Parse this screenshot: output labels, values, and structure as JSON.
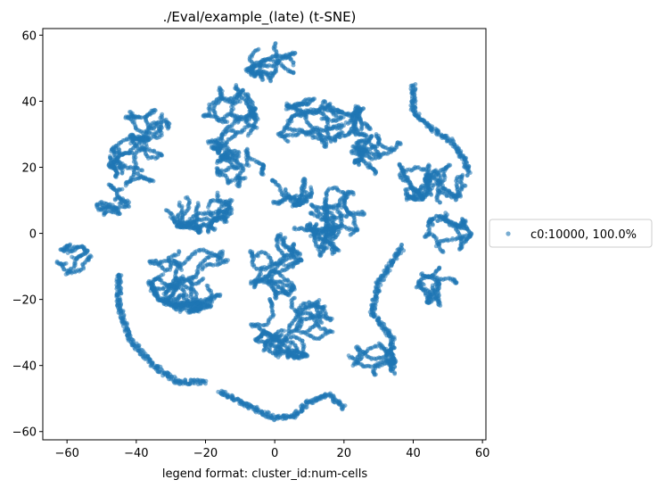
{
  "chart_data": {
    "type": "scatter",
    "title": "./Eval/example_(late) (t-SNE)",
    "xlabel": "legend format:  cluster_id:num-cells",
    "ylabel": "",
    "xlim": [
      -67,
      61
    ],
    "ylim": [
      -62.5,
      62
    ],
    "x_ticks": [
      -60,
      -40,
      -20,
      0,
      20,
      40,
      60
    ],
    "y_ticks": [
      -60,
      -40,
      -20,
      0,
      20,
      40,
      60
    ],
    "x_tick_labels": [
      "−60",
      "−40",
      "−20",
      "0",
      "20",
      "40",
      "60"
    ],
    "y_tick_labels": [
      "−60",
      "−40",
      "−20",
      "0",
      "20",
      "40",
      "60"
    ],
    "grid": false,
    "legend_position": "outside-right",
    "color": "#1f77b4",
    "series": [
      {
        "name": "c0:10000, 100.0%",
        "color": "#1f77b4",
        "point_count": 10000,
        "clusters": [
          {
            "shape": "blob",
            "center": [
              -1,
              52
            ],
            "radius": [
              8,
              6
            ]
          },
          {
            "shape": "blob",
            "center": [
              -13,
              34
            ],
            "radius": [
              8,
              11
            ]
          },
          {
            "shape": "blob",
            "center": [
              -10,
              20
            ],
            "radius": [
              7,
              6
            ]
          },
          {
            "shape": "blob",
            "center": [
              10,
              33
            ],
            "radius": [
              10,
              8
            ]
          },
          {
            "shape": "blob",
            "center": [
              22,
              33
            ],
            "radius": [
              6,
              6
            ]
          },
          {
            "shape": "blob",
            "center": [
              30,
              24
            ],
            "radius": [
              8,
              6
            ]
          },
          {
            "shape": "blob",
            "center": [
              40,
              16
            ],
            "radius": [
              8,
              6
            ]
          },
          {
            "shape": "blob",
            "center": [
              49,
              15
            ],
            "radius": [
              6,
              6
            ]
          },
          {
            "shape": "blob",
            "center": [
              -37,
              33
            ],
            "radius": [
              7,
              5
            ]
          },
          {
            "shape": "blob",
            "center": [
              -40,
              22
            ],
            "radius": [
              8,
              8
            ]
          },
          {
            "shape": "blob",
            "center": [
              -47,
              10
            ],
            "radius": [
              5,
              5
            ]
          },
          {
            "shape": "blob",
            "center": [
              4,
              13
            ],
            "radius": [
              7,
              5
            ]
          },
          {
            "shape": "blob",
            "center": [
              18,
              6
            ],
            "radius": [
              8,
              8
            ]
          },
          {
            "shape": "blob",
            "center": [
              -22,
              8
            ],
            "radius": [
              10,
              8
            ]
          },
          {
            "shape": "blob",
            "center": [
              -25,
              -12
            ],
            "radius": [
              12,
              12
            ]
          },
          {
            "shape": "blob",
            "center": [
              0,
              -10
            ],
            "radius": [
              8,
              10
            ]
          },
          {
            "shape": "blob",
            "center": [
              12,
              -2
            ],
            "radius": [
              9,
              5
            ]
          },
          {
            "shape": "blob",
            "center": [
              -58,
              -8
            ],
            "radius": [
              5,
              5
            ]
          },
          {
            "shape": "blob",
            "center": [
              5,
              -28
            ],
            "radius": [
              12,
              10
            ]
          },
          {
            "shape": "blob",
            "center": [
              28,
              -38
            ],
            "radius": [
              7,
              5
            ]
          },
          {
            "shape": "blob",
            "center": [
              50,
              0
            ],
            "radius": [
              7,
              6
            ]
          },
          {
            "shape": "blob",
            "center": [
              47,
              -16
            ],
            "radius": [
              6,
              6
            ]
          },
          {
            "shape": "curve",
            "points": [
              [
                -45,
                -12
              ],
              [
                -45,
                -22
              ],
              [
                -42,
                -32
              ],
              [
                -35,
                -40
              ],
              [
                -28,
                -45
              ],
              [
                -20,
                -45
              ]
            ]
          },
          {
            "shape": "curve",
            "points": [
              [
                -16,
                -48
              ],
              [
                -8,
                -52
              ],
              [
                0,
                -56
              ],
              [
                6,
                -55
              ],
              [
                10,
                -51
              ],
              [
                16,
                -49
              ],
              [
                20,
                -53
              ]
            ]
          },
          {
            "shape": "curve",
            "points": [
              [
                40,
                45
              ],
              [
                40,
                37
              ],
              [
                45,
                32
              ],
              [
                51,
                28
              ],
              [
                55,
                22
              ],
              [
                56,
                18
              ]
            ]
          },
          {
            "shape": "curve",
            "points": [
              [
                37,
                -4
              ],
              [
                30,
                -15
              ],
              [
                28,
                -24
              ],
              [
                34,
                -32
              ],
              [
                34,
                -42
              ]
            ]
          }
        ]
      }
    ]
  }
}
